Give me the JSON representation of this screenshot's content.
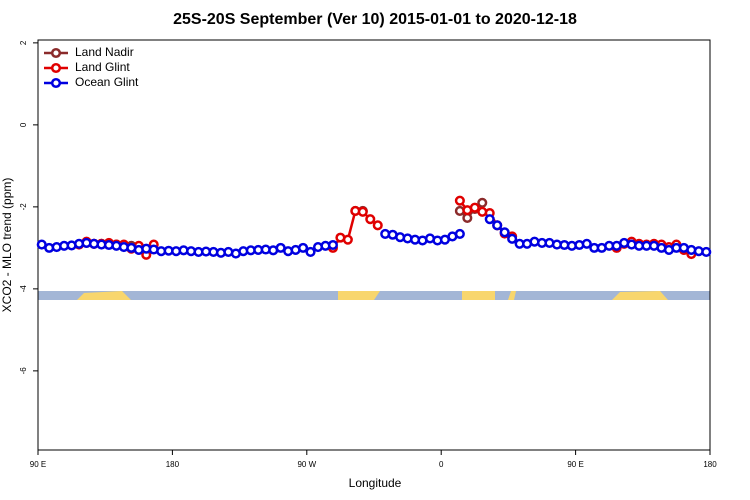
{
  "chart_data": {
    "type": "line",
    "title": "25S-20S September (Ver 10)   2015-01-01 to 2020-12-18",
    "xlabel": "Longitude",
    "ylabel": "XCO2 - MLO trend (ppm)",
    "xlim": [
      90,
      540
    ],
    "xticks": [
      {
        "value": 90,
        "label": "90 E"
      },
      180,
      {
        "value": 270,
        "label": "90 W"
      },
      {
        "value": 360,
        "label": "0"
      },
      {
        "value": 450,
        "label": "90 E"
      },
      {
        "value": 540,
        "label": "180"
      }
    ],
    "ylim": [
      -7.93,
      2.07
    ],
    "yticks": [
      2,
      0,
      -2,
      -4,
      -6
    ],
    "legend": "topleft",
    "series": [
      {
        "name": "Land Nadir",
        "color": "#8b2b2b",
        "x": [
          122.5,
          127.5,
          132.5,
          137.5,
          142.5,
          147.5,
          152.5,
          200,
          302.5,
          307.5,
          340,
          372.5,
          377.5,
          382.5,
          387.5
        ],
        "values": [
          -2.88,
          -2.9,
          -2.9,
          -2.92,
          -2.92,
          -2.95,
          -2.95,
          null,
          -2.1,
          -2.1,
          null,
          -2.1,
          -2.27,
          -2.05,
          -1.9
        ]
      },
      {
        "name": "Land Glint",
        "color": "#e00000",
        "x": [
          117.5,
          122.5,
          127.5,
          132.5,
          137.5,
          142.5,
          147.5,
          152.5,
          157.5,
          162.5,
          167.5,
          230,
          287.5,
          292.5,
          297.5,
          302.5,
          307.5,
          312.5,
          317.5,
          340,
          372.5,
          377.5,
          382.5,
          387.5,
          392.5,
          397.5,
          402.5,
          407.5,
          450,
          477.5,
          482.5,
          487.5,
          492.5,
          497.5,
          502.5,
          507.5,
          512.5,
          517.5,
          522.5,
          527.5
        ],
        "values": [
          -2.92,
          -2.85,
          -2.9,
          -2.9,
          -2.88,
          -2.92,
          -2.92,
          -3.02,
          -2.95,
          -3.17,
          -2.92,
          null,
          -3.0,
          -2.75,
          -2.8,
          -2.1,
          -2.12,
          -2.3,
          -2.45,
          null,
          -1.85,
          -2.08,
          -2.02,
          -2.12,
          -2.15,
          -2.45,
          -2.65,
          -2.72,
          null,
          -3.0,
          -2.9,
          -2.85,
          -2.9,
          -2.92,
          -2.9,
          -2.92,
          -2.98,
          -2.92,
          -3.05,
          -3.15
        ]
      },
      {
        "name": "Ocean Glint",
        "color": "#0000e0",
        "x": [
          92.5,
          97.5,
          102.5,
          107.5,
          112.5,
          117.5,
          122.5,
          127.5,
          132.5,
          137.5,
          142.5,
          147.5,
          152.5,
          157.5,
          162.5,
          167.5,
          172.5,
          177.5,
          182.5,
          187.5,
          192.5,
          197.5,
          202.5,
          207.5,
          212.5,
          217.5,
          222.5,
          227.5,
          232.5,
          237.5,
          242.5,
          247.5,
          252.5,
          257.5,
          262.5,
          267.5,
          272.5,
          277.5,
          282.5,
          287.5,
          305,
          322.5,
          327.5,
          332.5,
          337.5,
          342.5,
          347.5,
          352.5,
          357.5,
          362.5,
          367.5,
          372.5,
          382.5,
          392.5,
          397.5,
          402.5,
          407.5,
          412.5,
          417.5,
          422.5,
          427.5,
          432.5,
          437.5,
          442.5,
          447.5,
          452.5,
          457.5,
          462.5,
          467.5,
          472.5,
          477.5,
          482.5,
          487.5,
          492.5,
          497.5,
          502.5,
          507.5,
          512.5,
          517.5,
          522.5,
          527.5,
          532.5,
          537.5
        ],
        "values": [
          -2.92,
          -3.0,
          -2.98,
          -2.95,
          -2.94,
          -2.9,
          -2.88,
          -2.9,
          -2.92,
          -2.93,
          -2.95,
          -2.98,
          -3.0,
          -3.05,
          -3.02,
          -3.04,
          -3.08,
          -3.07,
          -3.08,
          -3.06,
          -3.08,
          -3.1,
          -3.09,
          -3.1,
          -3.12,
          -3.1,
          -3.14,
          -3.08,
          -3.06,
          -3.05,
          -3.04,
          -3.06,
          -3.0,
          -3.08,
          -3.05,
          -3.0,
          -3.1,
          -2.98,
          -2.95,
          -2.93,
          null,
          -2.66,
          -2.68,
          -2.74,
          -2.77,
          -2.8,
          -2.82,
          -2.77,
          -2.82,
          -2.8,
          -2.72,
          -2.66,
          null,
          -2.3,
          -2.45,
          -2.62,
          -2.78,
          -2.9,
          -2.9,
          -2.85,
          -2.88,
          -2.88,
          -2.92,
          -2.93,
          -2.95,
          -2.93,
          -2.9,
          -3.0,
          -3.0,
          -2.95,
          -2.95,
          -2.88,
          -2.92,
          -2.95,
          -2.95,
          -2.95,
          -3.0,
          -3.05,
          -3.0,
          -3.0,
          -3.05,
          -3.08,
          -3.1
        ]
      }
    ]
  }
}
